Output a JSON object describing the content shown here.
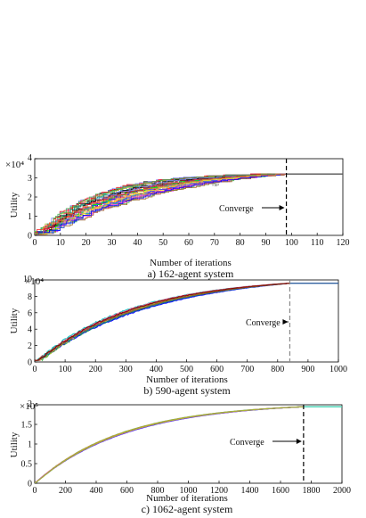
{
  "chart_data": [
    {
      "type": "line",
      "caption": "a) 162-agent system",
      "xlabel": "Number of iterations",
      "ylabel": "Utility",
      "multiplier": "×10⁴",
      "xlim": [
        0,
        120
      ],
      "ylim": [
        0,
        4
      ],
      "xticks": [
        0,
        10,
        20,
        30,
        40,
        50,
        60,
        70,
        80,
        90,
        100,
        110,
        120
      ],
      "yticks": [
        0,
        1,
        2,
        3,
        4
      ],
      "y_max_label": "4",
      "inset_label": "×10⁴",
      "converge": {
        "label": "Converge",
        "x": 98,
        "line_style": "dashed",
        "line_color": "#000000"
      },
      "final_value": 3.2,
      "curve_shape": {
        "rise_rate": 0.032,
        "start": 0.05,
        "spread": 0.9
      },
      "series_count": 40,
      "final_line_color": "#555555"
    },
    {
      "type": "line",
      "caption": "b) 590-agent system",
      "xlabel": "Number of iterations",
      "ylabel": "Utility",
      "multiplier": "×10⁴",
      "xlim": [
        0,
        1000
      ],
      "ylim": [
        0,
        10
      ],
      "xticks": [
        0,
        100,
        200,
        300,
        400,
        500,
        600,
        700,
        800,
        900,
        1000
      ],
      "yticks": [
        0,
        2,
        4,
        6,
        8,
        10
      ],
      "y_max_label": "10",
      "converge": {
        "label": "Converge",
        "x": 840,
        "line_style": "dashed",
        "line_color": "#888888"
      },
      "final_value": 9.6,
      "curve_shape": {
        "rise_rate": 0.0028,
        "start": 0.2,
        "spread": 0.25
      },
      "series_count": 12,
      "final_line_color": "#3060a0"
    },
    {
      "type": "line",
      "caption": "c) 1062-agent system",
      "xlabel": "Number of iterations",
      "ylabel": "Utility",
      "multiplier": "×10⁵",
      "xlim": [
        0,
        2000
      ],
      "ylim": [
        0,
        2
      ],
      "xticks": [
        0,
        200,
        400,
        600,
        800,
        1000,
        1200,
        1400,
        1600,
        1800,
        2000
      ],
      "yticks": [
        0,
        0.5,
        1,
        1.5,
        2
      ],
      "y_max_label": "2",
      "converge": {
        "label": "Converge",
        "x": 1750,
        "line_style": "dashed",
        "line_color": "#000000"
      },
      "final_value": 1.95,
      "curve_shape": {
        "rise_rate": 0.0017,
        "start": 0.02,
        "spread": 0.04
      },
      "series_count": 8,
      "final_line_color": "#40d0b0"
    }
  ],
  "series_colors": [
    "#e6194b",
    "#3cb44b",
    "#0000ff",
    "#f58231",
    "#911eb4",
    "#00c0c0",
    "#f032e6",
    "#a0c020",
    "#ff6f9f",
    "#008080",
    "#9a6324",
    "#800000",
    "#2040ff",
    "#ffe119",
    "#000000",
    "#00ff00",
    "#ff0000",
    "#8080ff"
  ]
}
